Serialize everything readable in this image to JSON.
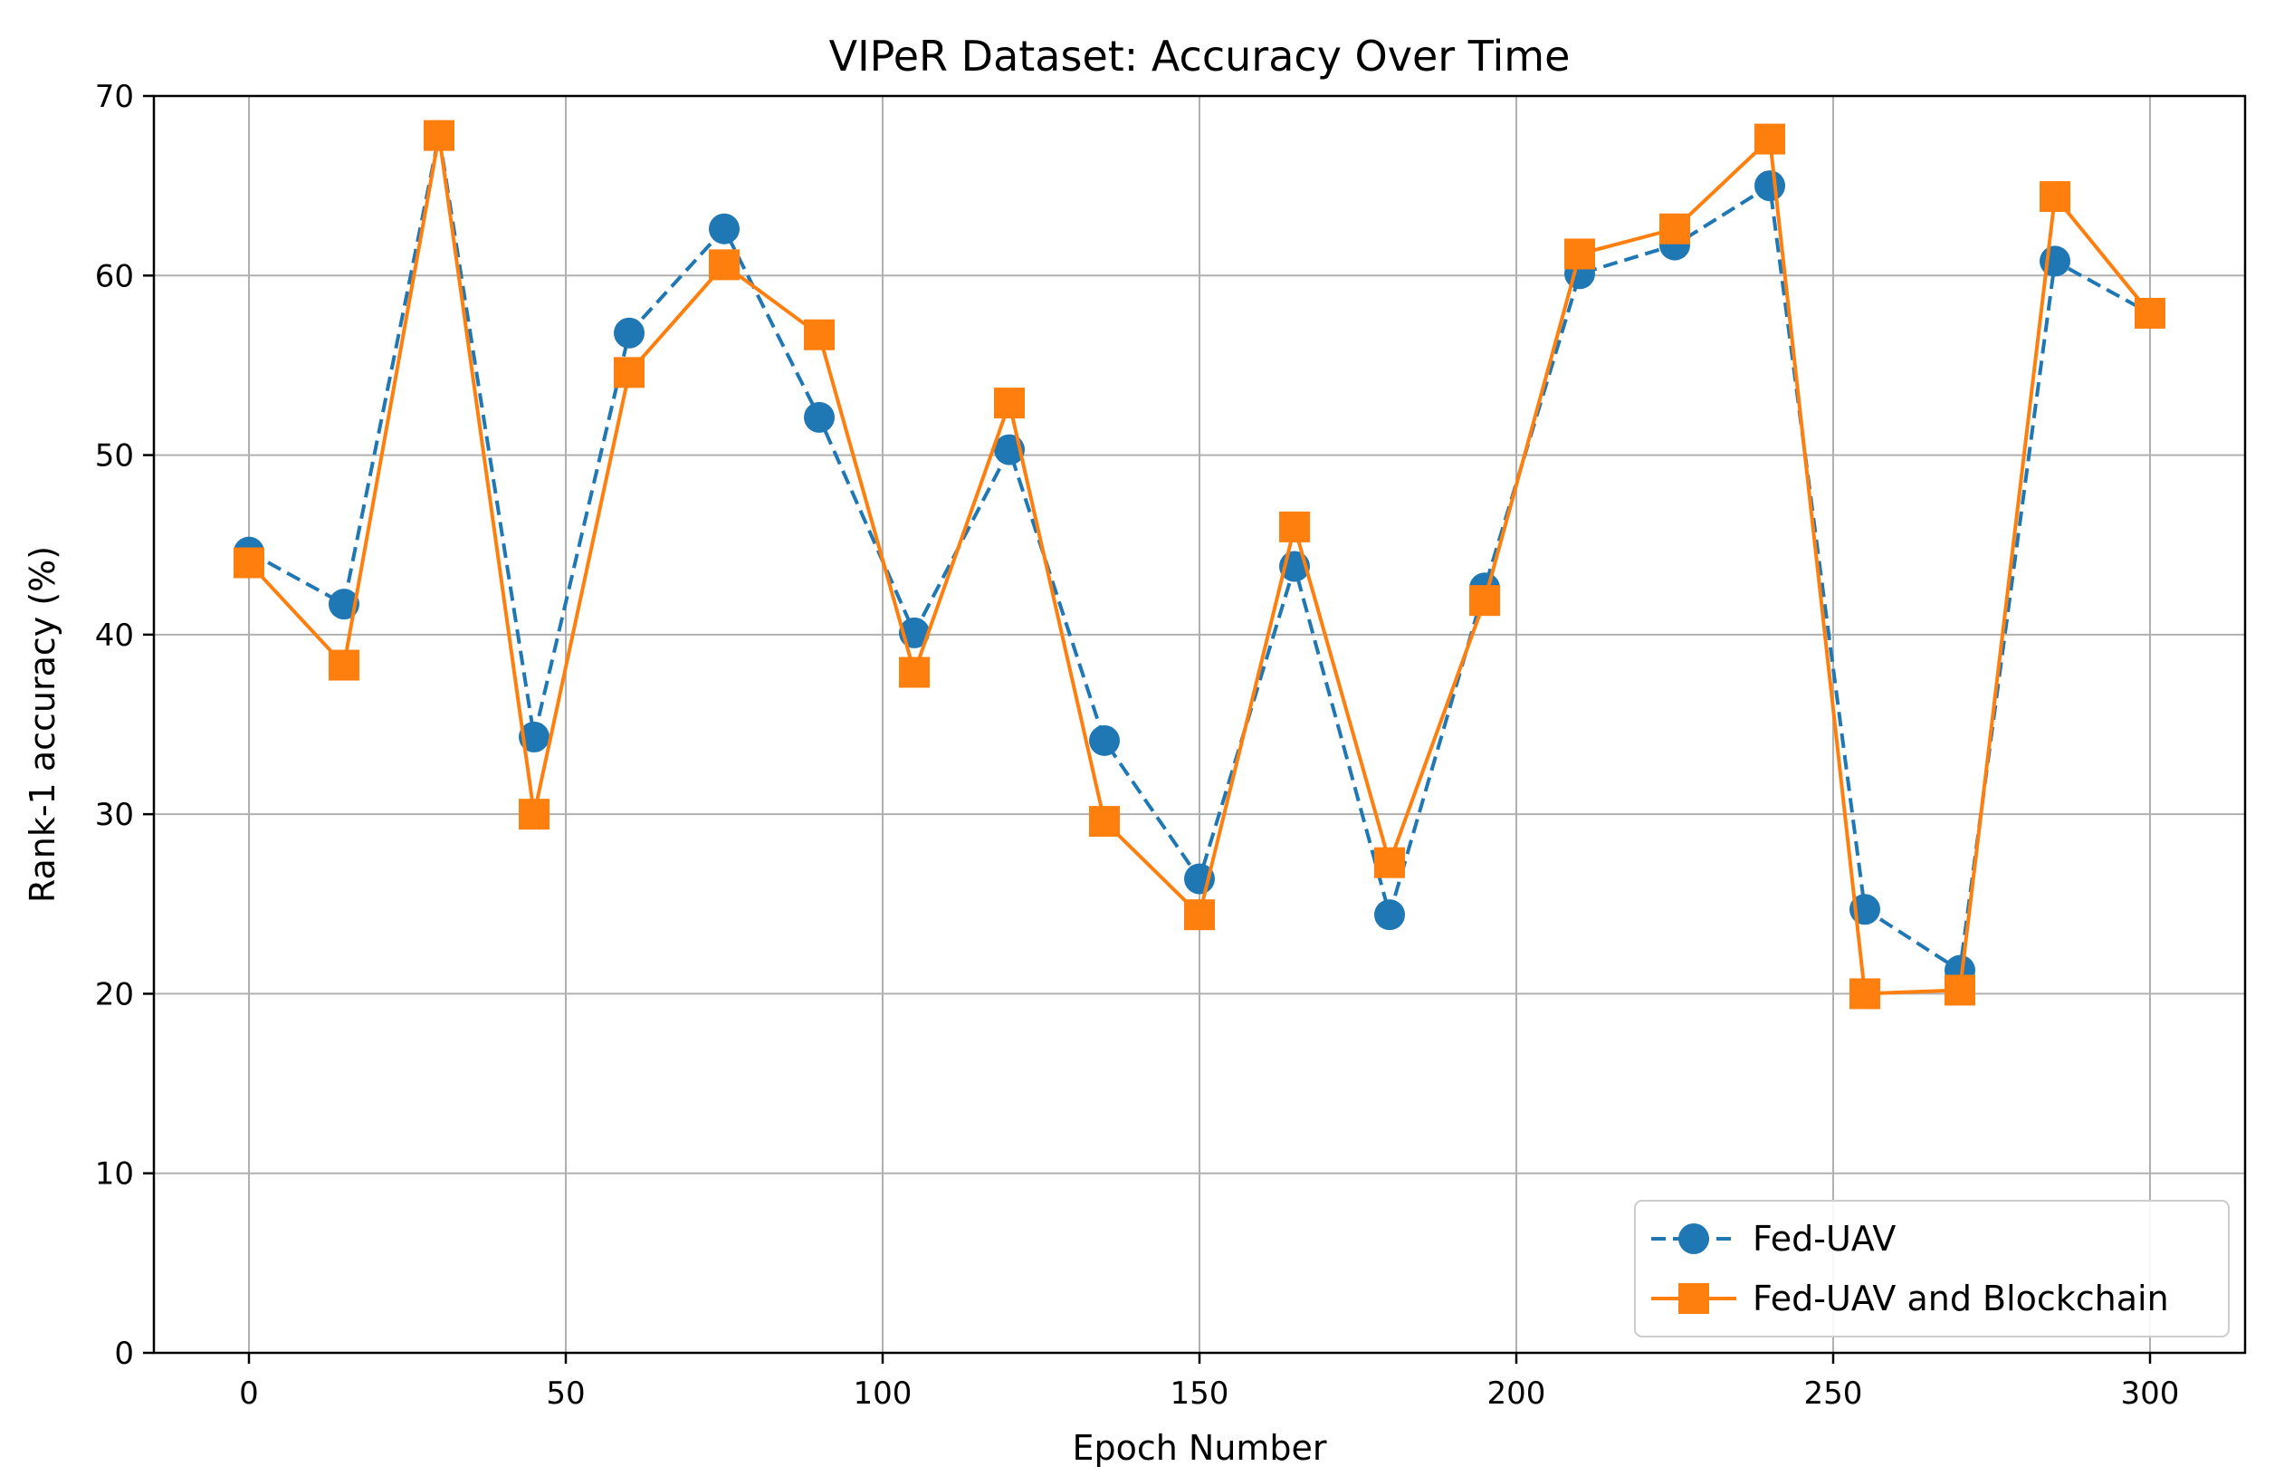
{
  "chart_data": {
    "type": "line",
    "title": "VIPeR Dataset: Accuracy Over Time",
    "xlabel": "Epoch Number",
    "ylabel": "Rank-1 accuracy (%)",
    "xlim": [
      -15,
      315
    ],
    "ylim": [
      0,
      70
    ],
    "xticks": [
      0,
      50,
      100,
      150,
      200,
      250,
      300
    ],
    "yticks": [
      0,
      10,
      20,
      30,
      40,
      50,
      60,
      70
    ],
    "grid": true,
    "legend_position": "lower-right",
    "x": [
      0,
      15,
      30,
      45,
      60,
      75,
      90,
      105,
      120,
      135,
      150,
      165,
      180,
      195,
      210,
      225,
      240,
      255,
      270,
      285,
      300
    ],
    "series": [
      {
        "name": "Fed-UAV",
        "color": "#1f77b4",
        "line_style": "dashed",
        "marker": "circle",
        "values": [
          44.6,
          41.7,
          67.8,
          34.3,
          56.8,
          62.6,
          52.1,
          40.1,
          50.3,
          34.1,
          26.4,
          43.8,
          24.4,
          42.6,
          60.1,
          61.7,
          65.0,
          24.7,
          21.3,
          60.8,
          57.9
        ]
      },
      {
        "name": "Fed-UAV and Blockchain",
        "color": "#ff7f0e",
        "line_style": "solid",
        "marker": "square",
        "values": [
          44.0,
          38.3,
          67.8,
          30.0,
          54.6,
          60.6,
          56.7,
          37.9,
          52.9,
          29.6,
          24.4,
          46.0,
          27.3,
          41.9,
          61.2,
          62.6,
          67.6,
          20.0,
          20.2,
          64.4,
          57.9
        ]
      }
    ]
  }
}
